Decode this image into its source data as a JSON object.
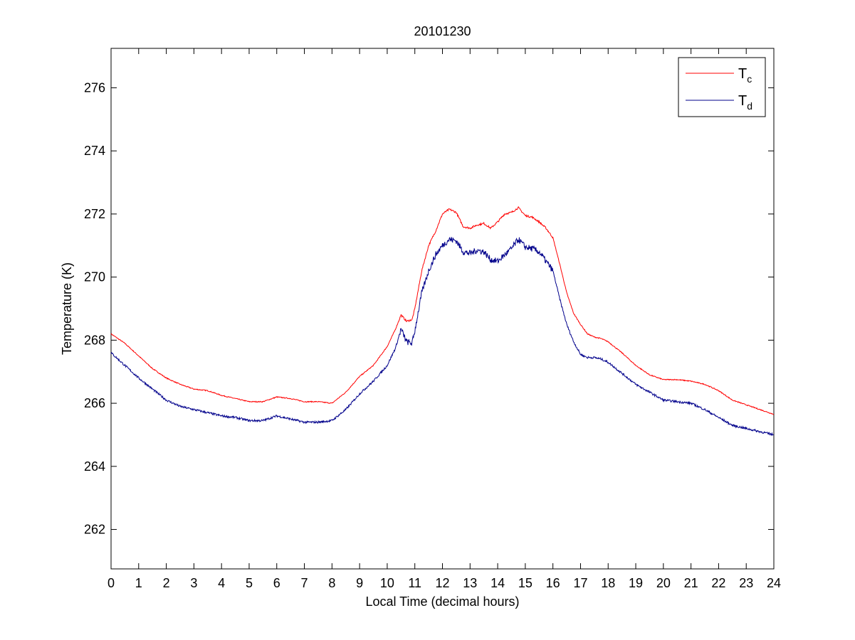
{
  "chart_data": {
    "type": "line",
    "title": "20101230",
    "xlabel": "Local Time (decimal hours)",
    "ylabel": "Temperature (K)",
    "xlim": [
      0,
      24
    ],
    "ylim": [
      260.75,
      277.25
    ],
    "x_ticks": [
      0,
      1,
      2,
      3,
      4,
      5,
      6,
      7,
      8,
      9,
      10,
      11,
      12,
      13,
      14,
      15,
      16,
      17,
      18,
      19,
      20,
      21,
      22,
      23,
      24
    ],
    "x_tick_labels": [
      "0",
      "1",
      "2",
      "3",
      "4",
      "5",
      "6",
      "7",
      "8",
      "9",
      "10",
      "11",
      "12",
      "13",
      "14",
      "15",
      "16",
      "17",
      "18",
      "19",
      "20",
      "21",
      "22",
      "23",
      "24"
    ],
    "y_ticks": [
      262,
      264,
      266,
      268,
      270,
      272,
      274,
      276
    ],
    "y_tick_labels": [
      "262",
      "264",
      "266",
      "268",
      "270",
      "272",
      "274",
      "276"
    ],
    "grid": false,
    "legend_position": "top-right",
    "series": [
      {
        "name_main": "T",
        "name_sub": "c",
        "color": "#ff0000",
        "x": [
          0,
          0.5,
          1,
          1.5,
          2,
          2.5,
          3,
          3.5,
          4,
          4.5,
          5,
          5.5,
          6,
          6.5,
          7,
          7.5,
          8,
          8.5,
          9,
          9.5,
          10,
          10.3,
          10.5,
          10.7,
          10.9,
          11,
          11.25,
          11.5,
          11.75,
          12,
          12.25,
          12.5,
          12.75,
          13,
          13.25,
          13.5,
          13.75,
          14,
          14.25,
          14.5,
          14.75,
          15,
          15.25,
          15.5,
          15.75,
          16,
          16.25,
          16.5,
          16.75,
          17,
          17.25,
          17.5,
          17.75,
          18,
          18.5,
          19,
          19.5,
          20,
          20.5,
          21,
          21.5,
          22,
          22.5,
          23,
          23.5,
          24
        ],
        "values": [
          268.2,
          267.9,
          267.5,
          267.1,
          266.8,
          266.6,
          266.45,
          266.4,
          266.25,
          266.15,
          266.05,
          266.05,
          266.2,
          266.15,
          266.05,
          266.05,
          266.0,
          266.35,
          266.85,
          267.2,
          267.8,
          268.35,
          268.8,
          268.6,
          268.65,
          269.0,
          270.2,
          271.0,
          271.45,
          272.0,
          272.15,
          272.05,
          271.6,
          271.55,
          271.65,
          271.7,
          271.55,
          271.75,
          272.0,
          272.05,
          272.2,
          271.95,
          271.9,
          271.75,
          271.55,
          271.25,
          270.4,
          269.5,
          268.85,
          268.5,
          268.2,
          268.1,
          268.05,
          267.95,
          267.6,
          267.2,
          266.9,
          266.75,
          266.75,
          266.7,
          266.6,
          266.4,
          266.1,
          265.95,
          265.8,
          265.65
        ]
      },
      {
        "name_main": "T",
        "name_sub": "d",
        "color": "#00008b",
        "x": [
          0,
          0.5,
          1,
          1.5,
          2,
          2.5,
          3,
          3.5,
          4,
          4.5,
          5,
          5.5,
          6,
          6.5,
          7,
          7.5,
          8,
          8.5,
          9,
          9.5,
          10,
          10.3,
          10.5,
          10.7,
          10.9,
          11,
          11.25,
          11.5,
          11.75,
          12,
          12.25,
          12.5,
          12.75,
          13,
          13.25,
          13.5,
          13.75,
          14,
          14.25,
          14.5,
          14.75,
          15,
          15.25,
          15.5,
          15.75,
          16,
          16.25,
          16.5,
          16.75,
          17,
          17.25,
          17.5,
          17.75,
          18,
          18.5,
          19,
          19.5,
          20,
          20.5,
          21,
          21.5,
          22,
          22.5,
          23,
          23.5,
          24
        ],
        "values": [
          267.6,
          267.2,
          266.8,
          266.45,
          266.1,
          265.9,
          265.8,
          265.7,
          265.6,
          265.55,
          265.45,
          265.45,
          265.6,
          265.5,
          265.4,
          265.4,
          265.45,
          265.8,
          266.3,
          266.7,
          267.2,
          267.75,
          268.35,
          267.95,
          267.9,
          268.3,
          269.5,
          270.2,
          270.7,
          271.0,
          271.2,
          271.15,
          270.8,
          270.75,
          270.85,
          270.8,
          270.55,
          270.5,
          270.7,
          270.9,
          271.2,
          270.95,
          270.9,
          270.8,
          270.5,
          270.2,
          269.3,
          268.5,
          267.95,
          267.55,
          267.45,
          267.45,
          267.4,
          267.3,
          266.95,
          266.6,
          266.35,
          266.1,
          266.05,
          266.0,
          265.8,
          265.55,
          265.3,
          265.2,
          265.1,
          265.0
        ]
      }
    ]
  }
}
